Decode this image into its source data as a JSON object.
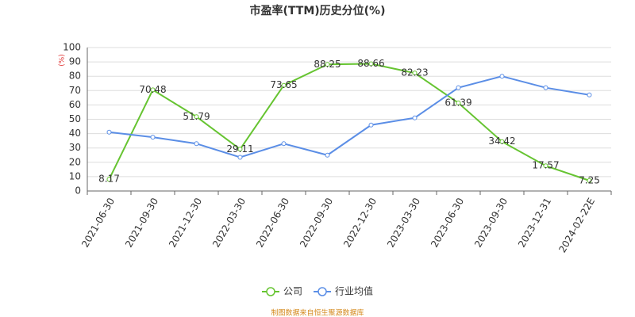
{
  "chart_data": {
    "type": "line",
    "title": "市盈率(TTM)历史分位(%)",
    "y_unit": "(%)",
    "categories": [
      "2021-06-30",
      "2021-09-30",
      "2021-12-30",
      "2022-03-30",
      "2022-06-30",
      "2022-09-30",
      "2022-12-30",
      "2023-03-30",
      "2023-06-30",
      "2023-09-30",
      "2023-12-31",
      "2024-02-22E"
    ],
    "series": [
      {
        "name": "公司",
        "color": "#66c431",
        "values": [
          8.17,
          70.48,
          51.79,
          29.11,
          73.65,
          88.25,
          88.66,
          82.23,
          61.39,
          34.42,
          17.57,
          7.25
        ],
        "labels": true
      },
      {
        "name": "行业均值",
        "color": "#5b8ee6",
        "values": [
          41,
          37.5,
          33,
          23.5,
          33,
          25,
          46,
          51,
          72,
          80,
          72,
          67
        ],
        "labels": false
      }
    ],
    "ylim": [
      0,
      100
    ],
    "yticks": [
      0,
      10,
      20,
      30,
      40,
      50,
      60,
      70,
      80,
      90,
      100
    ],
    "grid": true,
    "source": "制图数据来自恒生聚源数据库"
  }
}
